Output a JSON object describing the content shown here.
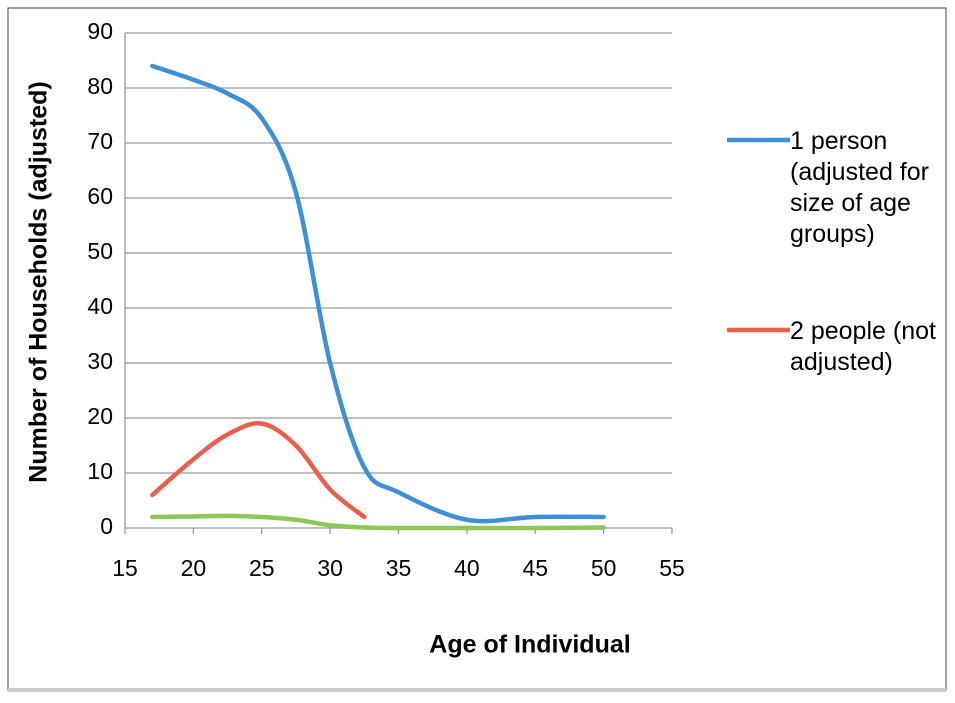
{
  "chart_data": {
    "type": "line",
    "x_label": "Age of Individual",
    "y_label": "Number of Households (adjusted)",
    "x": [
      17,
      20,
      22.5,
      25,
      27.5,
      30,
      32.5,
      35,
      40,
      45,
      50
    ],
    "series": [
      {
        "name": "1 person (adjusted for size of age groups)",
        "color": "#3d8fd6",
        "values": [
          84,
          81.5,
          79,
          74.5,
          61,
          30,
          11,
          6.5,
          1.5,
          2,
          2
        ]
      },
      {
        "name": "2  people (not adjusted)",
        "color": "#e8604c",
        "values": [
          6,
          12.5,
          17,
          19,
          15,
          7,
          2,
          null,
          null,
          null,
          null
        ]
      },
      {
        "color": "#8cc757",
        "values": [
          2,
          2.1,
          2.2,
          2,
          1.5,
          0.5,
          0.1,
          0,
          0,
          0,
          0.1
        ]
      }
    ],
    "xlim": [
      15,
      55
    ],
    "xticks": [
      15,
      20,
      25,
      30,
      35,
      40,
      45,
      50,
      55
    ],
    "ylim": [
      0,
      90
    ],
    "yticks": [
      0,
      10,
      20,
      30,
      40,
      50,
      60,
      70,
      80,
      90
    ],
    "grid": true,
    "legend": "right"
  }
}
